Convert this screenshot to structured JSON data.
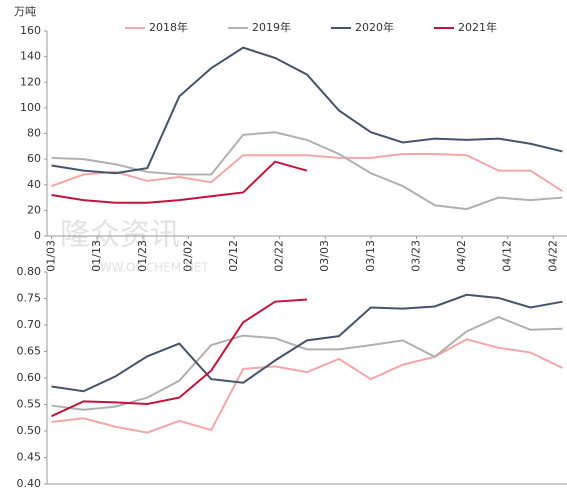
{
  "chart_data": [
    {
      "type": "line",
      "ylabel": "万吨",
      "x": [
        0,
        7,
        14,
        21,
        28,
        35,
        42,
        49,
        56,
        63,
        70,
        77,
        84,
        91,
        98,
        105,
        112
      ],
      "xlim": [
        -1,
        113
      ],
      "xticks": [
        {
          "value": 0,
          "label": "01/03"
        },
        {
          "value": 10,
          "label": "01/13"
        },
        {
          "value": 20,
          "label": "01/23"
        },
        {
          "value": 30,
          "label": "02/02"
        },
        {
          "value": 40,
          "label": "02/12"
        },
        {
          "value": 50,
          "label": "02/22"
        },
        {
          "value": 60,
          "label": "03/03"
        },
        {
          "value": 70,
          "label": "03/13"
        },
        {
          "value": 80,
          "label": "03/23"
        },
        {
          "value": 90,
          "label": "04/02"
        },
        {
          "value": 100,
          "label": "04/12"
        },
        {
          "value": 110,
          "label": "04/22"
        }
      ],
      "ylim": [
        0,
        160
      ],
      "yticks": [
        0,
        20,
        40,
        60,
        80,
        100,
        120,
        140,
        160
      ],
      "legend": "top",
      "series": [
        {
          "name": "2018年",
          "color": "#f2a7a8",
          "values": [
            39,
            48,
            50,
            43,
            46,
            42,
            63,
            63,
            63,
            61,
            61,
            64,
            64,
            63,
            51,
            51,
            35
          ]
        },
        {
          "name": "2019年",
          "color": "#b0b0b0",
          "values": [
            61,
            60,
            56,
            50,
            48,
            48,
            79,
            81,
            75,
            64,
            49,
            39,
            24,
            21,
            30,
            28,
            30
          ]
        },
        {
          "name": "2020年",
          "color": "#44546a",
          "values": [
            55,
            51,
            49,
            53,
            109,
            131,
            147,
            139,
            126,
            98,
            81,
            73,
            76,
            75,
            76,
            72,
            66
          ]
        },
        {
          "name": "2021年",
          "color": "#c0143c",
          "values": [
            32,
            28,
            26,
            26,
            28,
            31,
            34,
            58,
            51,
            null,
            null,
            null,
            null,
            null,
            null,
            null,
            null
          ]
        }
      ]
    },
    {
      "type": "line",
      "x": [
        0,
        7,
        14,
        21,
        28,
        35,
        42,
        49,
        56,
        63,
        70,
        77,
        84,
        91,
        98,
        105,
        112
      ],
      "xlim": [
        -1,
        113
      ],
      "ylim": [
        0.4,
        0.8
      ],
      "yticks": [
        {
          "value": 0.4,
          "label": "0.40"
        },
        {
          "value": 0.45,
          "label": "0.45"
        },
        {
          "value": 0.5,
          "label": "0.50"
        },
        {
          "value": 0.55,
          "label": "0.55"
        },
        {
          "value": 0.6,
          "label": "0.60"
        },
        {
          "value": 0.65,
          "label": "0.65"
        },
        {
          "value": 0.7,
          "label": "0.70"
        },
        {
          "value": 0.75,
          "label": "0.75"
        },
        {
          "value": 0.8,
          "label": "0.80"
        }
      ],
      "series": [
        {
          "color": "#f2a7a8",
          "values": [
            0.517,
            0.524,
            0.508,
            0.497,
            0.519,
            0.502,
            0.617,
            0.622,
            0.611,
            0.636,
            0.598,
            0.625,
            0.64,
            0.673,
            0.657,
            0.648,
            0.619
          ]
        },
        {
          "color": "#b0b0b0",
          "values": [
            0.548,
            0.54,
            0.546,
            0.563,
            0.595,
            0.662,
            0.68,
            0.675,
            0.654,
            0.654,
            0.662,
            0.671,
            0.64,
            0.688,
            0.715,
            0.691,
            0.693
          ]
        },
        {
          "color": "#44546a",
          "values": [
            0.584,
            0.575,
            0.603,
            0.641,
            0.665,
            0.598,
            0.591,
            0.633,
            0.671,
            0.679,
            0.733,
            0.731,
            0.735,
            0.757,
            0.751,
            0.733,
            0.744
          ]
        },
        {
          "color": "#c0143c",
          "values": [
            0.528,
            0.556,
            0.554,
            0.551,
            0.563,
            0.614,
            0.705,
            0.744,
            0.748,
            null,
            null,
            null,
            null,
            null,
            null,
            null,
            null
          ]
        }
      ]
    }
  ],
  "watermark": {
    "text": "隆众资讯",
    "url": "WWW.OILCHEM.NET"
  }
}
